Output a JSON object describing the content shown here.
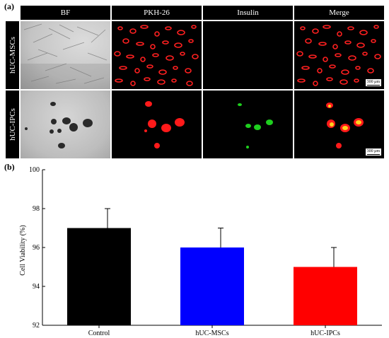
{
  "panel_a_label": "(a)",
  "panel_b_label": "(b)",
  "columns": [
    {
      "label": "BF",
      "color": "#ffffff"
    },
    {
      "label": "PKH-26",
      "color": "#ff2a2a"
    },
    {
      "label": "Insulin",
      "color": "#22cc22"
    },
    {
      "label": "Merge",
      "color": "#ffffff"
    }
  ],
  "rows": [
    {
      "label": "hUC-MSCs"
    },
    {
      "label": "hUC-IPCs"
    }
  ],
  "scale_bar_label": "300 μm",
  "chart_data": {
    "type": "bar",
    "categories": [
      "Control",
      "hUC-MSCs",
      "hUC-IPCs"
    ],
    "values": [
      97,
      96,
      95
    ],
    "errors": [
      1,
      1,
      1
    ],
    "colors": [
      "#000000",
      "#0000ff",
      "#ff0000"
    ],
    "ylabel": "Cell Viability (%)",
    "xlabel": "",
    "ylim": [
      92,
      100
    ],
    "yticks": [
      92,
      94,
      96,
      98,
      100
    ],
    "grid": false
  }
}
